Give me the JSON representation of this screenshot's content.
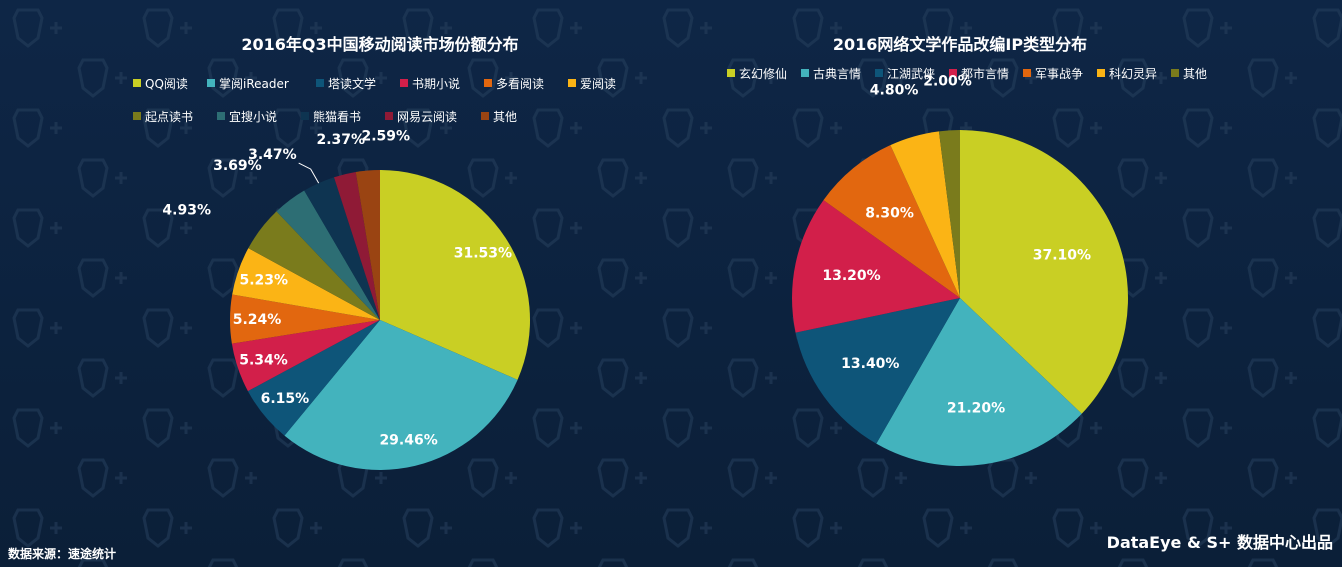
{
  "source_note": "数据来源：速途统计",
  "brand": "DataEye & S+ 数据中心出品",
  "chart_data": [
    {
      "type": "pie",
      "title": "2016年Q3中国移动阅读市场份额分布",
      "legend_position": "top",
      "slices": [
        {
          "label": "QQ阅读",
          "value": 31.53,
          "display": "31.53%",
          "color": "#c9cf24"
        },
        {
          "label": "掌阅iReader",
          "value": 29.46,
          "display": "29.46%",
          "color": "#43b3bd"
        },
        {
          "label": "塔读文学",
          "value": 6.15,
          "display": "6.15%",
          "color": "#0e5579"
        },
        {
          "label": "书期小说",
          "value": 5.34,
          "display": "5.34%",
          "color": "#d21f4a"
        },
        {
          "label": "多看阅读",
          "value": 5.24,
          "display": "5.24%",
          "color": "#e2670f"
        },
        {
          "label": "爱阅读",
          "value": 5.23,
          "display": "5.23%",
          "color": "#fbb415"
        },
        {
          "label": "起点读书",
          "value": 4.93,
          "display": "4.93%",
          "color": "#7a7b1c"
        },
        {
          "label": "宜搜小说",
          "value": 3.69,
          "display": "3.69%",
          "color": "#2d6e74"
        },
        {
          "label": "熊猫看书",
          "value": 3.47,
          "display": "3.47%",
          "color": "#0e3451"
        },
        {
          "label": "网易云阅读",
          "value": 2.37,
          "display": "2.37%",
          "color": "#8f1a36"
        },
        {
          "label": "其他",
          "value": 2.59,
          "display": "2.59%",
          "color": "#9a4412"
        }
      ]
    },
    {
      "type": "pie",
      "title": "2016网络文学作品改编IP类型分布",
      "legend_position": "top",
      "slices": [
        {
          "label": "玄幻修仙",
          "value": 37.1,
          "display": "37.10%",
          "color": "#c9cf24"
        },
        {
          "label": "古典言情",
          "value": 21.2,
          "display": "21.20%",
          "color": "#43b3bd"
        },
        {
          "label": "江湖武侠",
          "value": 13.4,
          "display": "13.40%",
          "color": "#0e5579"
        },
        {
          "label": "都市言情",
          "value": 13.2,
          "display": "13.20%",
          "color": "#d21f4a"
        },
        {
          "label": "军事战争",
          "value": 8.3,
          "display": "8.30%",
          "color": "#e2670f"
        },
        {
          "label": "科幻灵异",
          "value": 4.8,
          "display": "4.80%",
          "color": "#fbb415"
        },
        {
          "label": "其他",
          "value": 2.0,
          "display": "2.00%",
          "color": "#7a7b1c"
        }
      ]
    }
  ]
}
